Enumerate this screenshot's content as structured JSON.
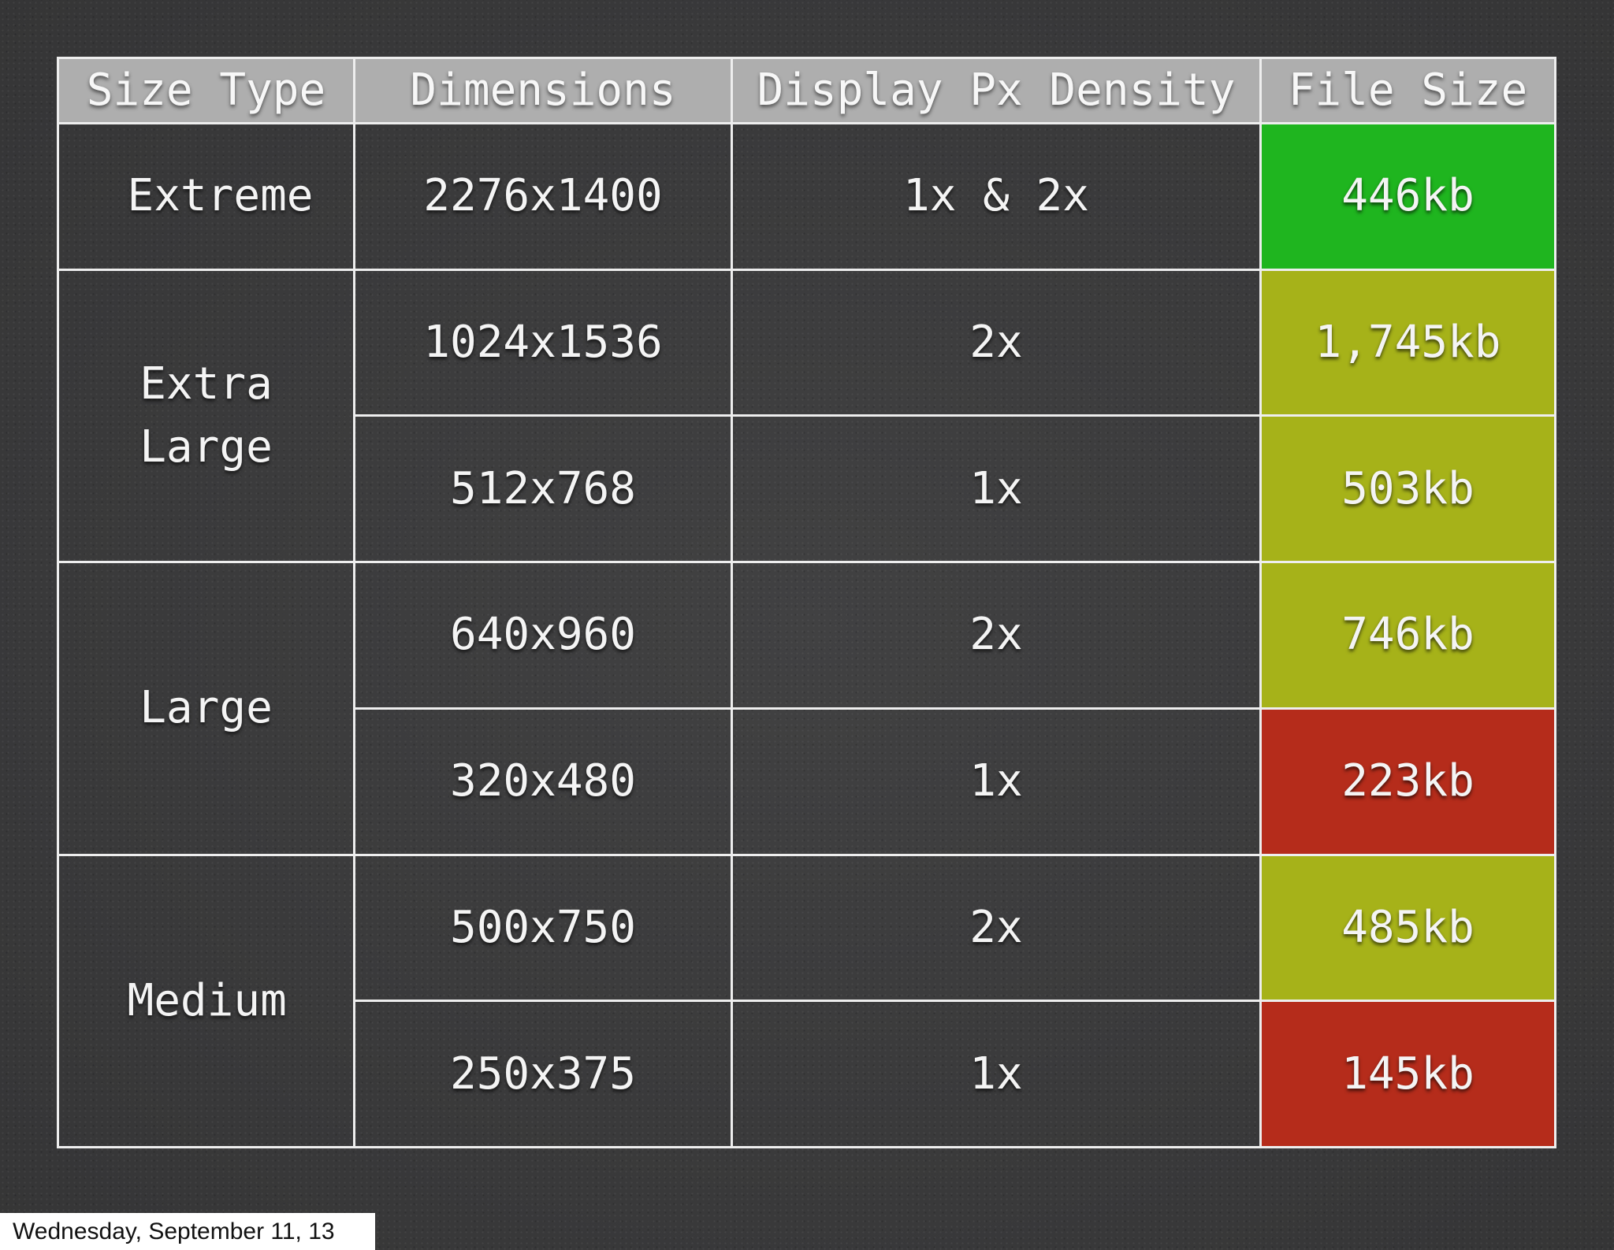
{
  "table": {
    "headers": {
      "size_type": "Size Type",
      "dimensions": "Dimensions",
      "density": "Display Px Density",
      "file_size": "File Size"
    },
    "groups": [
      {
        "label": "Extreme",
        "rows": [
          {
            "dimensions": "2276x1400",
            "density": "1x & 2x",
            "file_size": "446kb",
            "status_color": "#1fb51f"
          }
        ]
      },
      {
        "label": "Extra Large",
        "rows": [
          {
            "dimensions": "1024x1536",
            "density": "2x",
            "file_size": "1,745kb",
            "status_color": "#a6b219"
          },
          {
            "dimensions": "512x768",
            "density": "1x",
            "file_size": "503kb",
            "status_color": "#a6b219"
          }
        ]
      },
      {
        "label": "Large",
        "rows": [
          {
            "dimensions": "640x960",
            "density": "2x",
            "file_size": "746kb",
            "status_color": "#a6b219"
          },
          {
            "dimensions": "320x480",
            "density": "1x",
            "file_size": "223kb",
            "status_color": "#b52c1b"
          }
        ]
      },
      {
        "label": "Medium",
        "rows": [
          {
            "dimensions": "500x750",
            "density": "2x",
            "file_size": "485kb",
            "status_color": "#a6b219"
          },
          {
            "dimensions": "250x375",
            "density": "1x",
            "file_size": "145kb",
            "status_color": "#b52c1b"
          }
        ]
      }
    ]
  },
  "footer": {
    "date": "Wednesday, September 11, 13"
  }
}
